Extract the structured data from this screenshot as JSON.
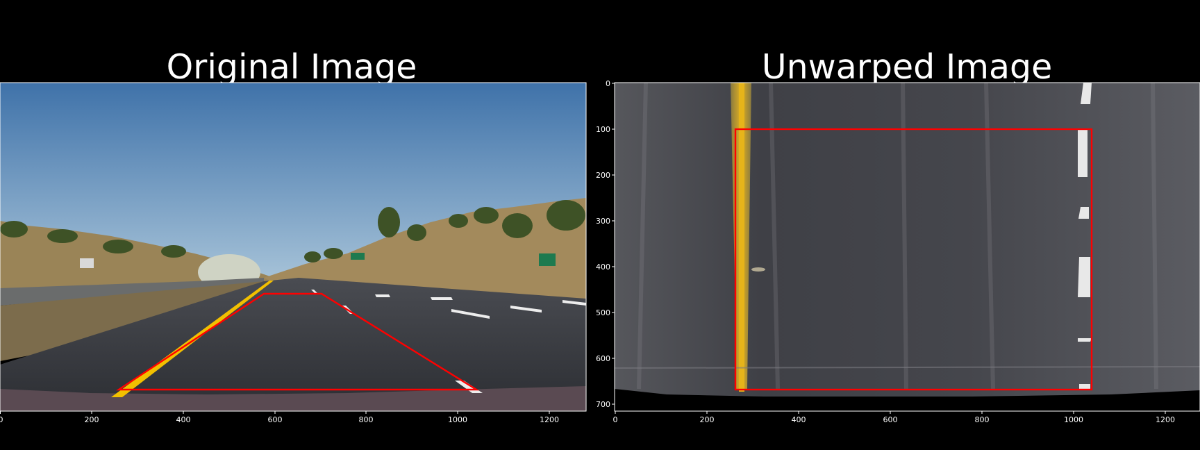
{
  "figure": {
    "left_title": "Original Image",
    "right_title": "Unwarped Image"
  },
  "left_axis": {
    "xticks": [
      "0",
      "200",
      "400",
      "600",
      "800",
      "1000",
      "1200"
    ]
  },
  "right_axis": {
    "xticks": [
      "0",
      "200",
      "400",
      "600",
      "800",
      "1000",
      "1200"
    ],
    "yticks": [
      "0",
      "100",
      "200",
      "300",
      "400",
      "500",
      "600",
      "700"
    ]
  },
  "colors": {
    "background": "#000000",
    "text": "#ffffff",
    "overlay": "#ff0000",
    "sky": "#5b8dc0",
    "road": "#33363c",
    "lane_yellow": "#f2c000"
  }
}
